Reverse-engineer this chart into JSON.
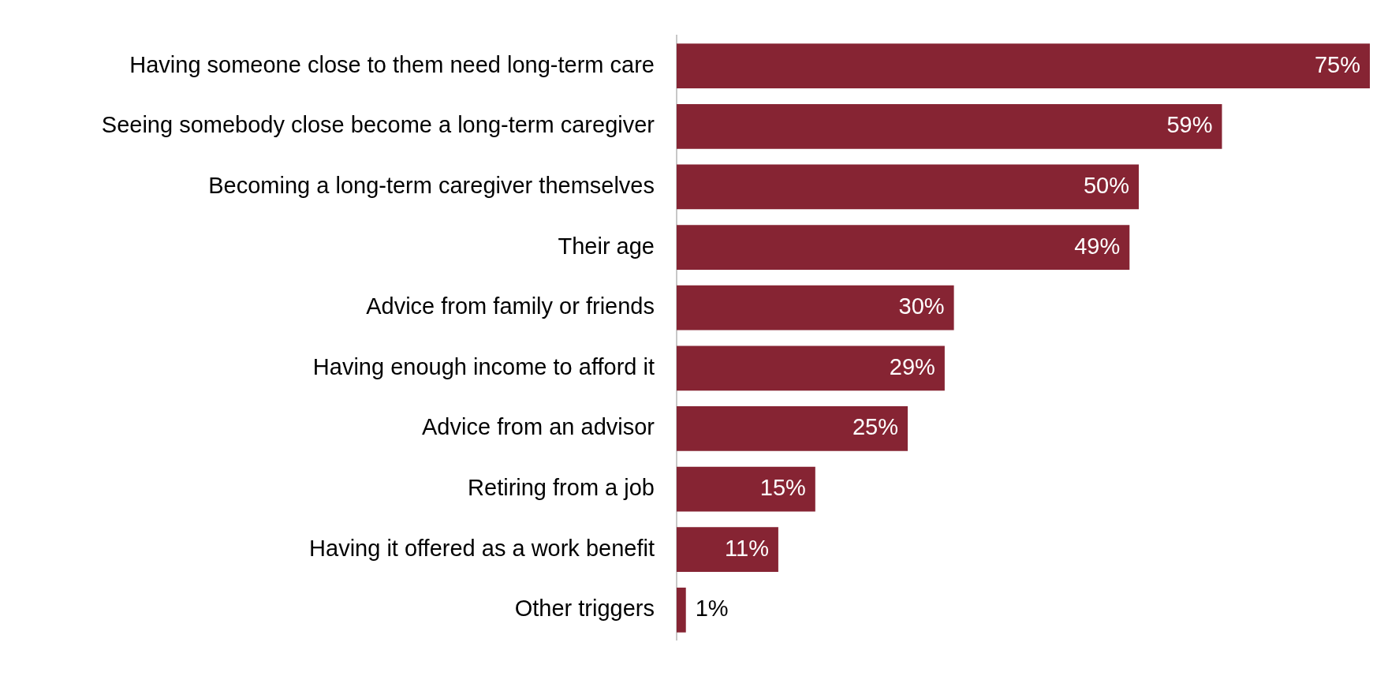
{
  "chart_data": {
    "type": "bar",
    "orientation": "horizontal",
    "categories": [
      "Having someone close to them need long-term care",
      "Seeing somebody close become a long-term caregiver",
      "Becoming a long-term caregiver themselves",
      "Their age",
      "Advice from family or friends",
      "Having enough income to afford it",
      "Advice from an advisor",
      "Retiring from a job",
      "Having it offered as a work benefit",
      "Other triggers"
    ],
    "values": [
      75,
      59,
      50,
      49,
      30,
      29,
      25,
      15,
      11,
      1
    ],
    "value_labels": [
      "75%",
      "59%",
      "50%",
      "49%",
      "30%",
      "29%",
      "25%",
      "15%",
      "11%",
      "1%"
    ],
    "color": "#862433",
    "grid": false,
    "legend": false,
    "tick_labels": "y"
  }
}
